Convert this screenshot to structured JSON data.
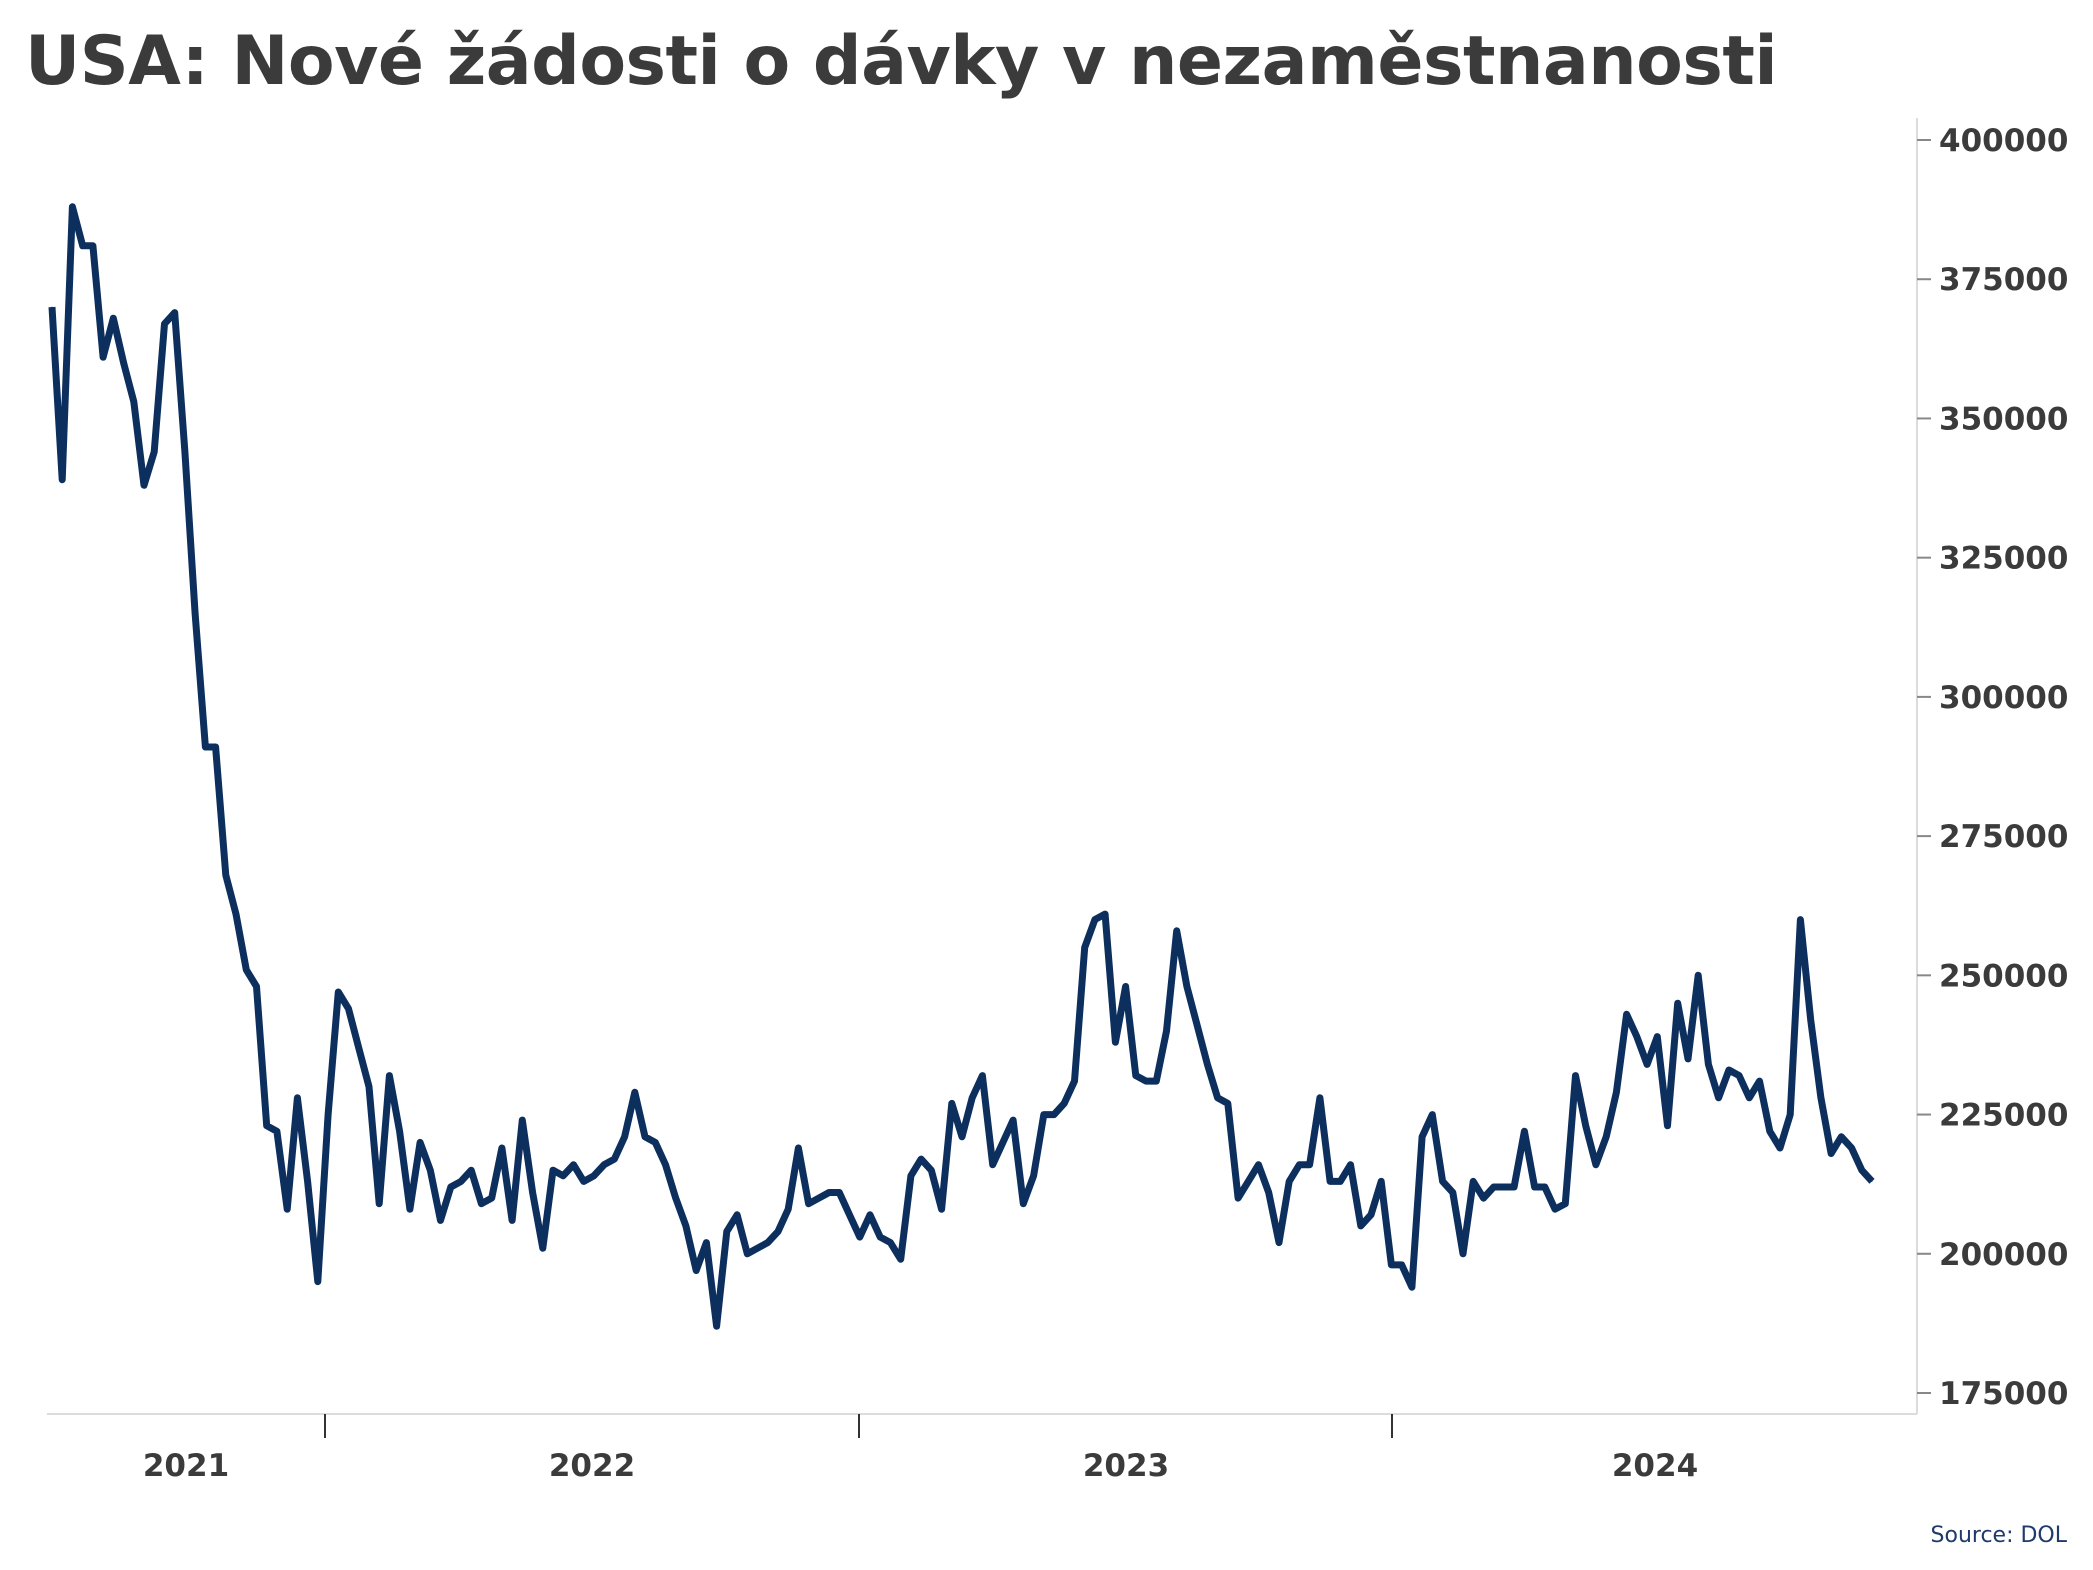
{
  "title": "USA: Nové žádosti o dávky v nezaměstnanosti",
  "source": "Source: DOL",
  "colors": {
    "line": "#0d2f5e",
    "text": "#3b3b3b",
    "axis": "#dcdcdc",
    "source": "#1f3a6b"
  },
  "chart_data": {
    "type": "line",
    "title": "USA: Nové žádosti o dávky v nezaměstnanosti",
    "xlabel": "",
    "ylabel": "",
    "ylim": [
      170000,
      405000
    ],
    "y_ticks": [
      400000,
      375000,
      350000,
      325000,
      300000,
      275000,
      250000,
      225000,
      200000,
      175000
    ],
    "y_axis_position": "right",
    "x_tick_labels": [
      "2021",
      "2022",
      "2023",
      "2024"
    ],
    "x_range_years": [
      2021.0,
      2024.7
    ],
    "grid": false,
    "legend": "none",
    "series": [
      {
        "values": [
          370000,
          339000,
          388000,
          381000,
          381000,
          361000,
          368000,
          360000,
          353000,
          338000,
          344000,
          367000,
          369000,
          344000,
          315000,
          291000,
          291000,
          268000,
          261000,
          251000,
          248000,
          223000,
          222000,
          208000,
          228000,
          213000,
          195000,
          225000,
          247000,
          244000,
          237000,
          230000,
          209000,
          232000,
          222000,
          208000,
          220000,
          215000,
          206000,
          212000,
          213000,
          215000,
          209000,
          210000,
          219000,
          206000,
          224000,
          211000,
          201000,
          215000,
          214000,
          216000,
          213000,
          214000,
          216000,
          217000,
          221000,
          229000,
          221000,
          220000,
          216000,
          210000,
          205000,
          197000,
          202000,
          187000,
          204000,
          207000,
          200000,
          201000,
          202000,
          204000,
          208000,
          219000,
          209000,
          210000,
          211000,
          211000,
          207000,
          203000,
          207000,
          203000,
          202000,
          199000,
          214000,
          217000,
          215000,
          208000,
          227000,
          221000,
          228000,
          232000,
          216000,
          220000,
          224000,
          209000,
          214000,
          225000,
          225000,
          227000,
          231000,
          255000,
          260000,
          261000,
          238000,
          248000,
          232000,
          231000,
          231000,
          240000,
          258000,
          248000,
          241000,
          234000,
          228000,
          227000,
          210000,
          213000,
          216000,
          211000,
          202000,
          213000,
          216000,
          216000,
          228000,
          213000,
          213000,
          216000,
          205000,
          207000,
          213000,
          198000,
          198000,
          194000,
          221000,
          225000,
          213000,
          211000,
          200000,
          213000,
          210000,
          212000,
          212000,
          212000,
          222000,
          212000,
          212000,
          208000,
          209000,
          232000,
          223000,
          216000,
          221000,
          229000,
          243000,
          239000,
          234000,
          239000,
          223000,
          245000,
          235000,
          250000,
          234000,
          228000,
          233000,
          232000,
          228000,
          231000,
          222000,
          219000,
          225000,
          260000,
          242000,
          228000,
          218000,
          221000,
          219000,
          215000,
          213000
        ]
      }
    ]
  }
}
